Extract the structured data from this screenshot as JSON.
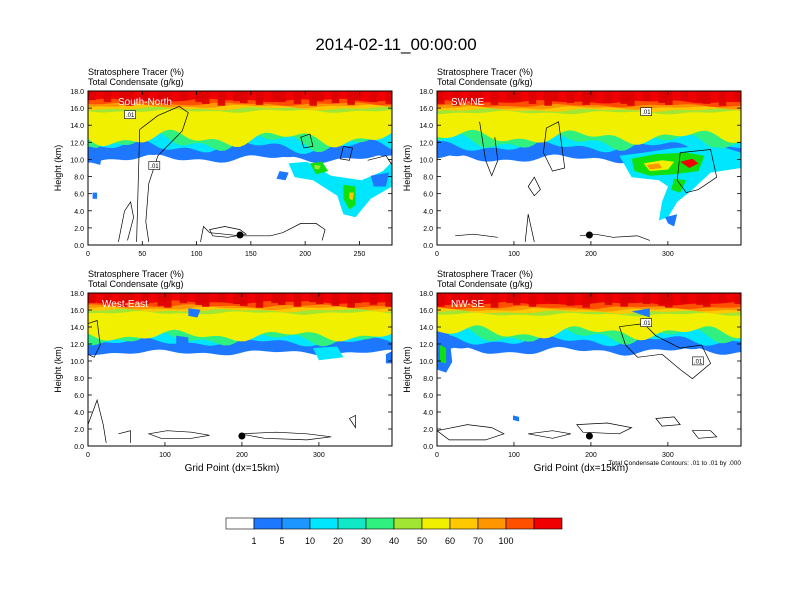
{
  "title": "2014-02-11_00:00:00",
  "colors": {
    "white": "#ffffff",
    "blue": "#1e78ff",
    "lightblue": "#1e96ff",
    "cyan": "#00e6ff",
    "aqua": "#10e8c8",
    "green_light": "#30f080",
    "green": "#10e010",
    "lime": "#a0e632",
    "yellow": "#f0f000",
    "gold": "#ffc800",
    "orange": "#ff9600",
    "redorange": "#ff5000",
    "red": "#f00000"
  },
  "chart_data": [
    {
      "type": "heatmap",
      "panel_label": "South-North",
      "title_line1": "Stratosphere Tracer   (%)",
      "title_line2": "Total Condensate   (g/kg)",
      "ylabel": "Height (km)",
      "xlabel": "",
      "xlim": [
        0,
        280
      ],
      "ylim": [
        0,
        18
      ],
      "x_ticks": [
        0,
        50,
        100,
        150,
        200,
        250
      ],
      "y_ticks": [
        "0.0",
        "2.0",
        "4.0",
        "6.0",
        "8.0",
        "10.0",
        "12.0",
        "14.0",
        "16.0",
        "18.0"
      ],
      "contour_labels": [
        ".01",
        ".01"
      ],
      "marker_x": 140
    },
    {
      "type": "heatmap",
      "panel_label": "SW-NE",
      "title_line1": "Stratosphere Tracer   (%)",
      "title_line2": "Total Condensate   (g/kg)",
      "ylabel": "Height (km)",
      "xlabel": "",
      "xlim": [
        0,
        395
      ],
      "ylim": [
        0,
        18
      ],
      "x_ticks": [
        0,
        100,
        200,
        300
      ],
      "y_ticks": [
        "0.0",
        "2.0",
        "4.0",
        "6.0",
        "8.0",
        "10.0",
        "12.0",
        "14.0",
        "16.0",
        "18.0"
      ],
      "contour_labels": [
        ".01"
      ],
      "marker_x": 198
    },
    {
      "type": "heatmap",
      "panel_label": "West-East",
      "title_line1": "Stratosphere Tracer   (%)",
      "title_line2": "Total Condensate   (g/kg)",
      "ylabel": "Height (km)",
      "xlabel": "Grid Point (dx=15km)",
      "xlim": [
        0,
        395
      ],
      "ylim": [
        0,
        18
      ],
      "x_ticks": [
        0,
        100,
        200,
        300
      ],
      "y_ticks": [
        "0.0",
        "2.0",
        "4.0",
        "6.0",
        "8.0",
        "10.0",
        "12.0",
        "14.0",
        "16.0",
        "18.0"
      ],
      "contour_labels": [],
      "marker_x": 200
    },
    {
      "type": "heatmap",
      "panel_label": "NW-SE",
      "title_line1": "Stratosphere Tracer   (%)",
      "title_line2": "Total Condensate   (g/kg)",
      "ylabel": "Height (km)",
      "xlabel": "Grid Point (dx=15km)",
      "note": "Total Condensate Contours: .01 to .01 by .000",
      "xlim": [
        0,
        395
      ],
      "ylim": [
        0,
        18
      ],
      "x_ticks": [
        0,
        100,
        200,
        300
      ],
      "y_ticks": [
        "0.0",
        "2.0",
        "4.0",
        "6.0",
        "8.0",
        "10.0",
        "12.0",
        "14.0",
        "16.0",
        "18.0"
      ],
      "contour_labels": [
        ".01",
        ".01"
      ],
      "marker_x": 198
    }
  ],
  "colorbar": {
    "labels": [
      "1",
      "5",
      "10",
      "20",
      "30",
      "40",
      "50",
      "60",
      "70",
      "100"
    ],
    "colors": [
      "#ffffff",
      "#1e78ff",
      "#1e96ff",
      "#00e6ff",
      "#10e8c8",
      "#30f080",
      "#a0e632",
      "#f0f000",
      "#ffc800",
      "#ff9600",
      "#ff5000",
      "#f00000"
    ]
  }
}
